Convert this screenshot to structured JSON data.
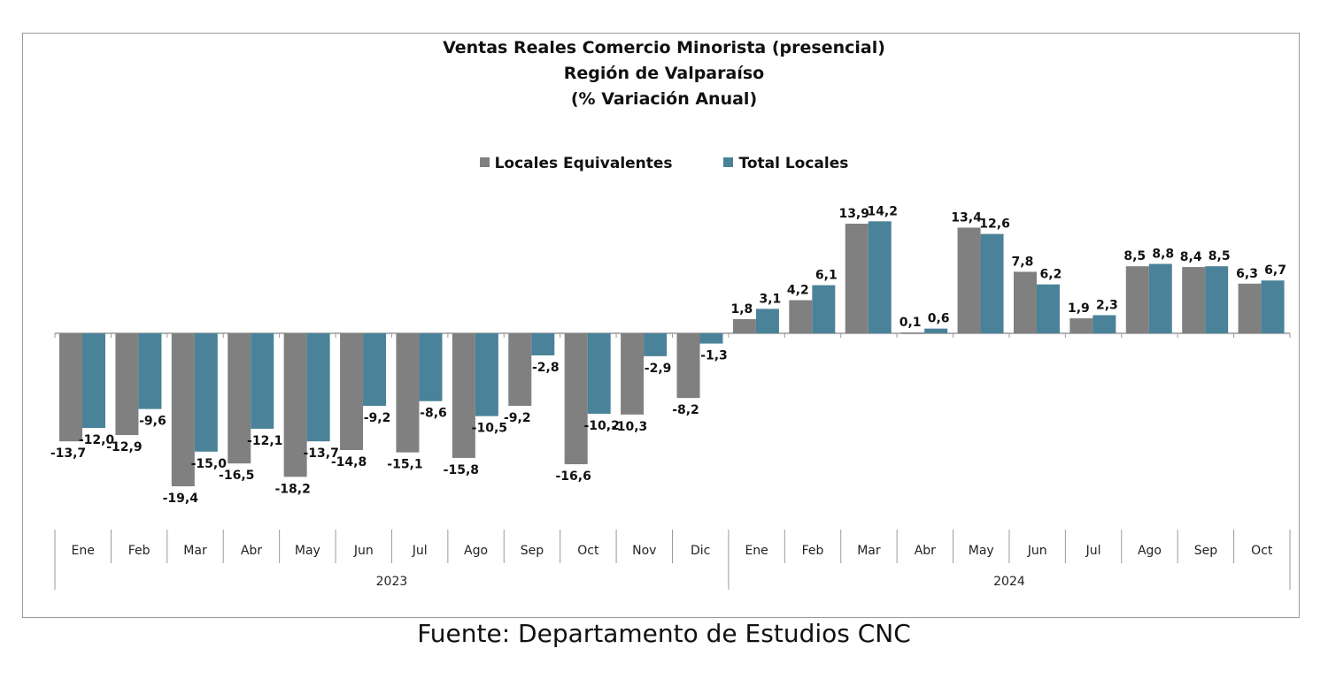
{
  "chart_data": {
    "type": "bar",
    "title_lines": [
      "Ventas Reales Comercio Minorista (presencial)",
      "Región de Valparaíso",
      "(% Variación Anual)"
    ],
    "categories": [
      "Ene",
      "Feb",
      "Mar",
      "Abr",
      "May",
      "Jun",
      "Jul",
      "Ago",
      "Sep",
      "Oct",
      "Nov",
      "Dic",
      "Ene",
      "Feb",
      "Mar",
      "Abr",
      "May",
      "Jun",
      "Jul",
      "Ago",
      "Sep",
      "Oct"
    ],
    "groups": [
      {
        "label": "2023",
        "count": 12
      },
      {
        "label": "2024",
        "count": 10
      }
    ],
    "series": [
      {
        "name": "Locales Equivalentes",
        "color": "#808080",
        "values": [
          -13.7,
          -12.9,
          -19.4,
          -16.5,
          -18.2,
          -14.8,
          -15.1,
          -15.8,
          -9.2,
          -16.6,
          -10.3,
          -8.2,
          1.8,
          4.2,
          13.9,
          0.1,
          13.4,
          7.8,
          1.9,
          8.5,
          8.4,
          6.3
        ],
        "labels": [
          "-13,7",
          "-12,9",
          "-19,4",
          "-16,5",
          "-18,2",
          "-14,8",
          "-15,1",
          "-15,8",
          "-9,2",
          "-16,6",
          "-10,3",
          "-8,2",
          "1,8",
          "4,2",
          "13,9",
          "0,1",
          "13,4",
          "7,8",
          "1,9",
          "8,5",
          "8,4",
          "6,3"
        ]
      },
      {
        "name": "Total Locales",
        "color": "#4a8299",
        "values": [
          -12.0,
          -9.6,
          -15.0,
          -12.1,
          -13.7,
          -9.2,
          -8.6,
          -10.5,
          -2.8,
          -10.2,
          -2.9,
          -1.3,
          3.1,
          6.1,
          14.2,
          0.6,
          12.6,
          6.2,
          2.3,
          8.8,
          8.5,
          6.7
        ],
        "labels": [
          "-12,0",
          "-9,6",
          "-15,0",
          "-12,1",
          "-13,7",
          "-9,2",
          "-8,6",
          "-10,5",
          "-2,8",
          "-10,2",
          "-2,9",
          "-1,3",
          "3,1",
          "6,1",
          "14,2",
          "0,6",
          "12,6",
          "6,2",
          "2,3",
          "8,8",
          "8,5",
          "6,7"
        ]
      }
    ],
    "legend_position": "top-center",
    "grid": false
  },
  "source": "Fuente: Departamento de Estudios CNC"
}
